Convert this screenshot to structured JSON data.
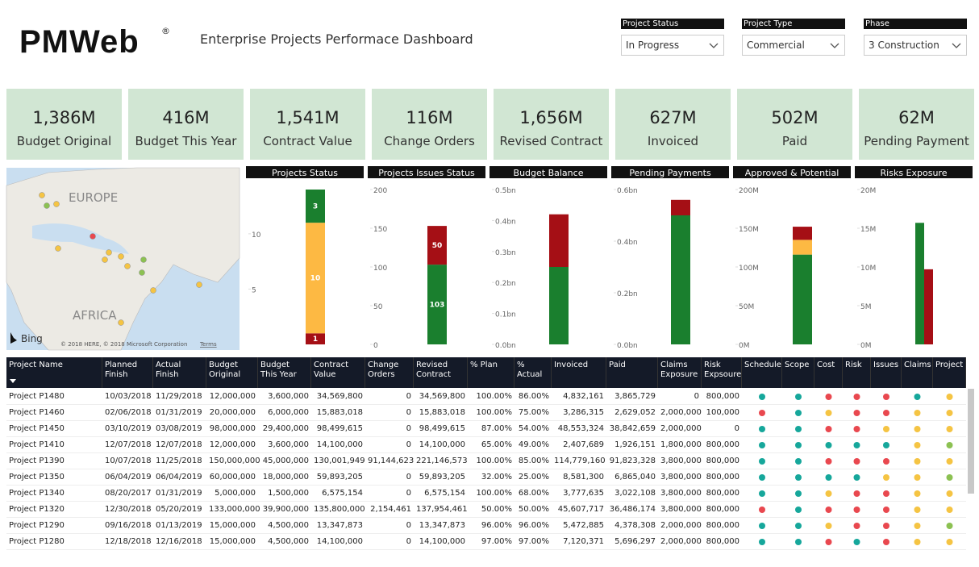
{
  "header": {
    "logo": "PMWeb",
    "logo_mark": "®",
    "title": "Enterprise Projects Performace Dashboard"
  },
  "filters": [
    {
      "label": "Project Status",
      "value": "In Progress"
    },
    {
      "label": "Project Type",
      "value": "Commercial"
    },
    {
      "label": "Phase",
      "value": "3 Construction"
    }
  ],
  "kpis": [
    {
      "value": "1,386M",
      "label": "Budget Original"
    },
    {
      "value": "416M",
      "label": "Budget This Year"
    },
    {
      "value": "1,541M",
      "label": "Contract Value"
    },
    {
      "value": "116M",
      "label": "Change Orders"
    },
    {
      "value": "1,656M",
      "label": "Revised Contract"
    },
    {
      "value": "627M",
      "label": "Invoiced"
    },
    {
      "value": "502M",
      "label": "Paid"
    },
    {
      "value": "62M",
      "label": "Pending Payment"
    }
  ],
  "map": {
    "labels": [
      "EUROPE",
      "AFRICA"
    ],
    "provider": "Bing",
    "copyright": "© 2018 HERE, © 2018 Microsoft Corporation",
    "terms": "Terms"
  },
  "chart_data": [
    {
      "type": "stacked_bar",
      "title": "Projects Status",
      "categories": [
        null
      ],
      "ylim": [
        0,
        14
      ],
      "yticks": [
        5,
        10
      ],
      "data_labels": true,
      "series": [
        {
          "color": "#a50f15",
          "values": [
            1
          ]
        },
        {
          "color": "#fdb943",
          "values": [
            10
          ]
        },
        {
          "color": "#1a7f2e",
          "values": [
            3
          ]
        }
      ]
    },
    {
      "type": "stacked_bar",
      "title": "Projects Issues Status",
      "categories": [
        null
      ],
      "ylim": [
        0,
        200
      ],
      "yticks": [
        0,
        50,
        100,
        150,
        200
      ],
      "data_labels": true,
      "series": [
        {
          "color": "#1a7f2e",
          "values": [
            103
          ]
        },
        {
          "color": "#a50f15",
          "values": [
            50
          ]
        }
      ]
    },
    {
      "type": "stacked_bar",
      "title": "Budget Balance",
      "categories": [
        null
      ],
      "ylim": [
        0,
        0.5
      ],
      "yticks": [
        {
          "value": 0,
          "label": "0.0bn"
        },
        {
          "value": 0.1,
          "label": "0.1bn"
        },
        {
          "value": 0.2,
          "label": "0.2bn"
        },
        {
          "value": 0.3,
          "label": "0.3bn"
        },
        {
          "value": 0.4,
          "label": "0.4bn"
        },
        {
          "value": 0.5,
          "label": "0.5bn"
        }
      ],
      "series": [
        {
          "color": "#1a7f2e",
          "values": [
            0.25
          ]
        },
        {
          "color": "#a50f15",
          "values": [
            0.17
          ]
        }
      ]
    },
    {
      "type": "stacked_bar",
      "title": "Pending Payments",
      "categories": [
        null
      ],
      "ylim": [
        0,
        0.6
      ],
      "yticks": [
        {
          "value": 0,
          "label": "0.0bn"
        },
        {
          "value": 0.2,
          "label": "0.2bn"
        },
        {
          "value": 0.4,
          "label": "0.4bn"
        },
        {
          "value": 0.6,
          "label": "0.6bn"
        }
      ],
      "series": [
        {
          "color": "#1a7f2e",
          "values": [
            0.5
          ]
        },
        {
          "color": "#a50f15",
          "values": [
            0.06
          ]
        }
      ]
    },
    {
      "type": "stacked_bar",
      "title": "Approved & Potential",
      "categories": [
        null
      ],
      "ylim": [
        0,
        200
      ],
      "yticks": [
        {
          "value": 0,
          "label": "0M"
        },
        {
          "value": 50,
          "label": "50M"
        },
        {
          "value": 100,
          "label": "100M"
        },
        {
          "value": 150,
          "label": "150M"
        },
        {
          "value": 200,
          "label": "200M"
        }
      ],
      "series": [
        {
          "color": "#1a7f2e",
          "values": [
            116
          ]
        },
        {
          "color": "#fdb943",
          "values": [
            19
          ]
        },
        {
          "color": "#a50f15",
          "values": [
            17
          ]
        }
      ]
    },
    {
      "type": "bar",
      "title": "Risks Exposure",
      "categories": [
        null
      ],
      "ylim": [
        0,
        20
      ],
      "yticks": [
        {
          "value": 0,
          "label": "0M"
        },
        {
          "value": 5,
          "label": "5M"
        },
        {
          "value": 10,
          "label": "10M"
        },
        {
          "value": 15,
          "label": "15M"
        },
        {
          "value": 20,
          "label": "20M"
        }
      ],
      "series": [
        {
          "color": "#1a7f2e",
          "values": [
            15.7
          ]
        },
        {
          "color": "#a50f15",
          "values": [
            9.7
          ]
        }
      ]
    }
  ],
  "table": {
    "columns": [
      "Project Name",
      "Planned Finish",
      "Actual Finish",
      "Budget Original",
      "Budget This Year",
      "Contract Value",
      "Change Orders",
      "Revised Contract",
      "% Plan",
      "% Actual",
      "Invoiced",
      "Paid",
      "Claims Exposure",
      "Risk Expsoure",
      "Schedule",
      "Scope",
      "Cost",
      "Risk",
      "Issues",
      "Claims",
      "Project"
    ],
    "rows": [
      {
        "cells": [
          "Project P1480",
          "10/03/2018",
          "11/29/2018",
          "12,000,000",
          "3,600,000",
          "34,569,800",
          "0",
          "34,569,800",
          "100.00%",
          "86.00%",
          "4,832,161",
          "3,865,729",
          "0",
          "800,000"
        ],
        "indicators": [
          "#16a79b",
          "#16a79b",
          "#e9484f",
          "#e9484f",
          "#e9484f",
          "#16a79b",
          "#f5c443"
        ]
      },
      {
        "cells": [
          "Project P1460",
          "02/06/2018",
          "01/31/2019",
          "20,000,000",
          "6,000,000",
          "15,883,018",
          "0",
          "15,883,018",
          "100.00%",
          "75.00%",
          "3,286,315",
          "2,629,052",
          "2,000,000",
          "100,000"
        ],
        "indicators": [
          "#e9484f",
          "#16a79b",
          "#f5c443",
          "#e9484f",
          "#e9484f",
          "#f5c443",
          "#f5c443"
        ]
      },
      {
        "cells": [
          "Project P1450",
          "03/10/2019",
          "03/08/2019",
          "98,000,000",
          "29,400,000",
          "98,499,615",
          "0",
          "98,499,615",
          "87.00%",
          "54.00%",
          "48,553,324",
          "38,842,659",
          "2,000,000",
          "0"
        ],
        "indicators": [
          "#16a79b",
          "#16a79b",
          "#e9484f",
          "#e9484f",
          "#f5c443",
          "#f5c443",
          "#f5c443"
        ]
      },
      {
        "cells": [
          "Project P1410",
          "12/07/2018",
          "12/07/2018",
          "12,000,000",
          "3,600,000",
          "14,100,000",
          "0",
          "14,100,000",
          "65.00%",
          "49.00%",
          "2,407,689",
          "1,926,151",
          "1,800,000",
          "800,000"
        ],
        "indicators": [
          "#16a79b",
          "#16a79b",
          "#16a79b",
          "#16a79b",
          "#16a79b",
          "#f5c443",
          "#8cc152"
        ]
      },
      {
        "cells": [
          "Project P1390",
          "10/07/2018",
          "11/25/2018",
          "150,000,000",
          "45,000,000",
          "130,001,949",
          "91,144,623",
          "221,146,573",
          "100.00%",
          "85.00%",
          "114,779,160",
          "91,823,328",
          "3,800,000",
          "800,000"
        ],
        "indicators": [
          "#16a79b",
          "#16a79b",
          "#e9484f",
          "#e9484f",
          "#e9484f",
          "#f5c443",
          "#f5c443"
        ]
      },
      {
        "cells": [
          "Project P1350",
          "06/04/2019",
          "06/04/2019",
          "60,000,000",
          "18,000,000",
          "59,893,205",
          "0",
          "59,893,205",
          "32.00%",
          "25.00%",
          "8,581,300",
          "6,865,040",
          "3,800,000",
          "800,000"
        ],
        "indicators": [
          "#16a79b",
          "#16a79b",
          "#16a79b",
          "#16a79b",
          "#f5c443",
          "#f5c443",
          "#8cc152"
        ]
      },
      {
        "cells": [
          "Project P1340",
          "08/20/2017",
          "01/31/2019",
          "5,000,000",
          "1,500,000",
          "6,575,154",
          "0",
          "6,575,154",
          "100.00%",
          "68.00%",
          "3,777,635",
          "3,022,108",
          "3,800,000",
          "800,000"
        ],
        "indicators": [
          "#16a79b",
          "#16a79b",
          "#f5c443",
          "#e9484f",
          "#e9484f",
          "#f5c443",
          "#f5c443"
        ]
      },
      {
        "cells": [
          "Project P1320",
          "12/30/2018",
          "05/20/2019",
          "133,000,000",
          "39,900,000",
          "135,800,000",
          "2,154,461",
          "137,954,461",
          "50.00%",
          "50.00%",
          "45,607,717",
          "36,486,174",
          "3,800,000",
          "800,000"
        ],
        "indicators": [
          "#e9484f",
          "#16a79b",
          "#e9484f",
          "#e9484f",
          "#e9484f",
          "#f5c443",
          "#f5c443"
        ]
      },
      {
        "cells": [
          "Project P1290",
          "09/16/2018",
          "01/13/2019",
          "15,000,000",
          "4,500,000",
          "13,347,873",
          "0",
          "13,347,873",
          "96.00%",
          "96.00%",
          "5,472,885",
          "4,378,308",
          "2,000,000",
          "800,000"
        ],
        "indicators": [
          "#16a79b",
          "#16a79b",
          "#f5c443",
          "#e9484f",
          "#e9484f",
          "#f5c443",
          "#8cc152"
        ]
      },
      {
        "cells": [
          "Project P1280",
          "12/18/2018",
          "12/16/2018",
          "15,000,000",
          "4,500,000",
          "14,100,000",
          "0",
          "14,100,000",
          "97.00%",
          "97.00%",
          "7,120,371",
          "5,696,297",
          "2,000,000",
          "800,000"
        ],
        "indicators": [
          "#16a79b",
          "#16a79b",
          "#e9484f",
          "#16a79b",
          "#e9484f",
          "#f5c443",
          "#f5c443"
        ]
      }
    ]
  }
}
